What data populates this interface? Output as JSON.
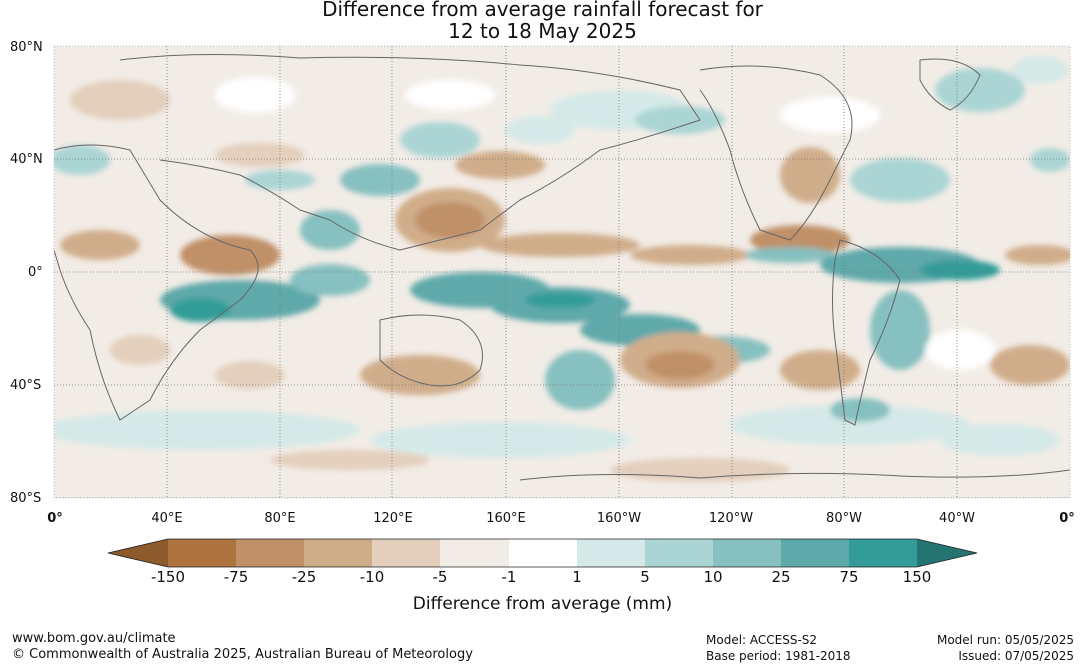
{
  "title": {
    "line1": "Difference from average rainfall forecast for",
    "line2": "12 to 18 May 2025"
  },
  "map": {
    "lat_labels": [
      "80°N",
      "40°N",
      "0°",
      "40°S",
      "80°S"
    ],
    "lon_labels": [
      "0°",
      "40°E",
      "80°E",
      "120°E",
      "160°E",
      "160°W",
      "120°W",
      "80°W",
      "40°W",
      "0°"
    ]
  },
  "legend": {
    "ticks": [
      "-150",
      "-75",
      "-25",
      "-10",
      "-5",
      "-1",
      "1",
      "5",
      "10",
      "25",
      "75",
      "150"
    ],
    "colors": [
      "#8c5a2b",
      "#ad7440",
      "#c09068",
      "#d0ad8a",
      "#e3cfbc",
      "#f2ece6",
      "#ffffff",
      "#d5eae8",
      "#aad5d4",
      "#86c0c0",
      "#5ea9aa",
      "#339c98",
      "#247572"
    ],
    "unit_label": "Difference from average (mm)"
  },
  "footer": {
    "site": "www.bom.gov.au/climate",
    "copyright": "© Commonwealth of Australia 2025, Australian Bureau of Meteorology",
    "model": "Model: ACCESS-S2",
    "base_period": "Base period: 1981-2018",
    "model_run": "Model run: 05/05/2025",
    "issued": "Issued: 07/05/2025"
  }
}
